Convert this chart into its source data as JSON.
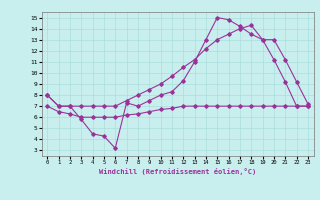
{
  "title": "",
  "xlabel": "Windchill (Refroidissement éolien,°C)",
  "bg_color": "#c8eeee",
  "line_color": "#993399",
  "grid_color": "#aadddd",
  "x_ticks": [
    0,
    1,
    2,
    3,
    4,
    5,
    6,
    7,
    8,
    9,
    10,
    11,
    12,
    13,
    14,
    15,
    16,
    17,
    18,
    19,
    20,
    21,
    22,
    23
  ],
  "y_ticks": [
    3,
    4,
    5,
    6,
    7,
    8,
    9,
    10,
    11,
    12,
    13,
    14,
    15
  ],
  "ylim": [
    2.5,
    15.5
  ],
  "xlim": [
    -0.5,
    23.5
  ],
  "line1_x": [
    0,
    1,
    2,
    3,
    4,
    5,
    6,
    7,
    8,
    9,
    10,
    11,
    12,
    13,
    14,
    15,
    16,
    17,
    18,
    19,
    20,
    21,
    22,
    23
  ],
  "line1_y": [
    8.0,
    7.0,
    7.0,
    5.8,
    4.5,
    4.3,
    3.2,
    7.3,
    7.0,
    7.5,
    8.0,
    8.3,
    9.3,
    11.0,
    13.0,
    15.0,
    14.8,
    14.2,
    13.5,
    13.0,
    11.2,
    9.2,
    7.0,
    7.0
  ],
  "line2_x": [
    0,
    1,
    2,
    3,
    4,
    5,
    6,
    7,
    8,
    9,
    10,
    11,
    12,
    13,
    14,
    15,
    16,
    17,
    18,
    19,
    20,
    21,
    22,
    23
  ],
  "line2_y": [
    8.0,
    7.0,
    7.0,
    7.0,
    7.0,
    7.0,
    7.0,
    7.5,
    8.0,
    8.5,
    9.0,
    9.7,
    10.5,
    11.2,
    12.2,
    13.0,
    13.5,
    14.0,
    14.3,
    13.0,
    13.0,
    11.2,
    9.2,
    7.2
  ],
  "line3_x": [
    0,
    1,
    2,
    3,
    4,
    5,
    6,
    7,
    8,
    9,
    10,
    11,
    12,
    13,
    14,
    15,
    16,
    17,
    18,
    19,
    20,
    21,
    22,
    23
  ],
  "line3_y": [
    7.0,
    6.5,
    6.3,
    6.0,
    6.0,
    6.0,
    6.0,
    6.2,
    6.3,
    6.5,
    6.7,
    6.8,
    7.0,
    7.0,
    7.0,
    7.0,
    7.0,
    7.0,
    7.0,
    7.0,
    7.0,
    7.0,
    7.0,
    7.0
  ]
}
